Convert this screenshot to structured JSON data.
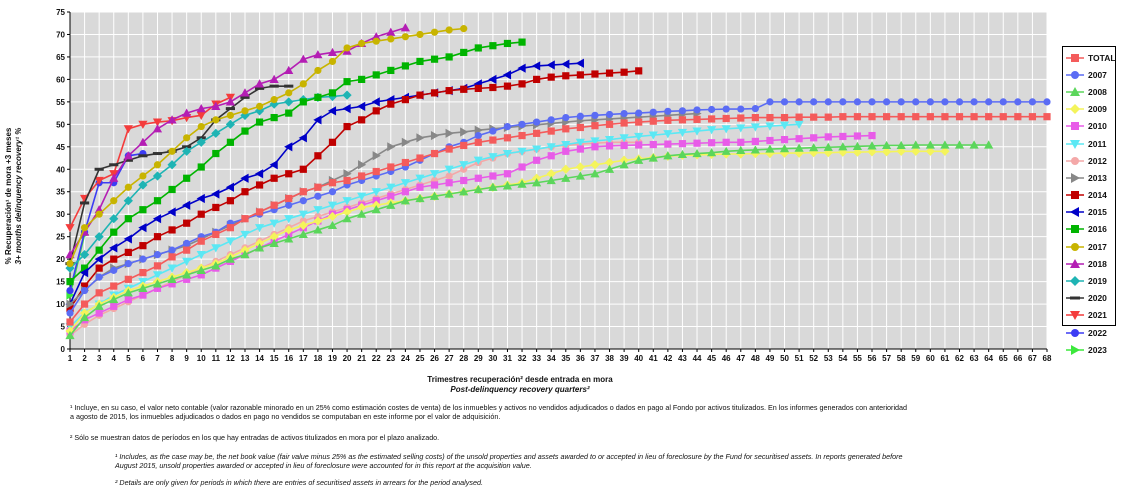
{
  "chart_data": {
    "type": "line",
    "title": "",
    "ylabel": "% Recuperación¹ de mora +3 meses",
    "ylabel_en": "3+ months delinquency recovery¹ %",
    "xlabel": "Trimestres recuperación² desde entrada en mora",
    "xlabel_en": "Post-delinquency recovery quarters²",
    "xlim": [
      1,
      68
    ],
    "ylim": [
      0,
      75
    ],
    "y_ticks": [
      0,
      5,
      10,
      15,
      20,
      25,
      30,
      35,
      40,
      45,
      50,
      55,
      60,
      65,
      70,
      75
    ],
    "x_ticks": [
      1,
      2,
      3,
      4,
      5,
      6,
      7,
      8,
      9,
      10,
      11,
      12,
      13,
      14,
      15,
      16,
      17,
      18,
      19,
      20,
      21,
      22,
      23,
      24,
      25,
      26,
      27,
      28,
      29,
      30,
      31,
      32,
      33,
      34,
      35,
      36,
      37,
      38,
      39,
      40,
      41,
      42,
      43,
      44,
      45,
      46,
      47,
      48,
      49,
      50,
      51,
      52,
      53,
      54,
      55,
      56,
      57,
      58,
      59,
      60,
      61,
      62,
      63,
      64,
      65,
      66,
      67,
      68
    ],
    "grid": true,
    "legend_position": "right",
    "series": [
      {
        "name": "TOTAL",
        "color": "#f45b5b",
        "marker": "square",
        "start_x": 1,
        "values": [
          6,
          10,
          12.5,
          14,
          15.5,
          17,
          18.5,
          20.5,
          22,
          24,
          25.5,
          27,
          29,
          30.5,
          32,
          33.5,
          35,
          36,
          37,
          37.5,
          38.5,
          39.5,
          40.5,
          41.5,
          42.5,
          43.5,
          44.5,
          45.3,
          46,
          46.5,
          47,
          47.5,
          48,
          48.5,
          49,
          49.3,
          49.7,
          50,
          50.3,
          50.5,
          50.7,
          50.9,
          51,
          51.1,
          51.2,
          51.3,
          51.4,
          51.5,
          51.5,
          51.5,
          51.6,
          51.6,
          51.6,
          51.7,
          51.7,
          51.7,
          51.7,
          51.7,
          51.7,
          51.7,
          51.7,
          51.7,
          51.7,
          51.7,
          51.7,
          51.7,
          51.7,
          51.7
        ]
      },
      {
        "name": "2007",
        "color": "#5b6cf4",
        "marker": "circle",
        "start_x": 1,
        "values": [
          8,
          13,
          16,
          17.5,
          19,
          20,
          21,
          22,
          23.5,
          25,
          26,
          28,
          29,
          30,
          31,
          32,
          33,
          34,
          35,
          36.5,
          37.5,
          38.5,
          39.5,
          40.5,
          42,
          43.5,
          45,
          46,
          47.5,
          48.5,
          49.5,
          50,
          50.5,
          51,
          51.5,
          51.8,
          52,
          52.2,
          52.4,
          52.5,
          52.7,
          52.9,
          53,
          53.2,
          53.3,
          53.4,
          53.4,
          53.5,
          55,
          55,
          55,
          55,
          55,
          55,
          55,
          55,
          55,
          55,
          55,
          55,
          55,
          55,
          55,
          55,
          55,
          55,
          55,
          55
        ]
      },
      {
        "name": "2008",
        "color": "#5bd65b",
        "marker": "triangle",
        "start_x": 1,
        "values": [
          3,
          7,
          9.5,
          11,
          12.5,
          13.5,
          14.5,
          15.5,
          16.5,
          17.5,
          18.5,
          20,
          21,
          22.5,
          23.5,
          24.5,
          25.5,
          26.5,
          27.5,
          29,
          30,
          31,
          32,
          33,
          33.5,
          34,
          34.5,
          35,
          35.5,
          36,
          36.3,
          36.7,
          37,
          37.5,
          38,
          38.5,
          39,
          40,
          41,
          42,
          42.5,
          43,
          43.3,
          43.5,
          43.7,
          44,
          44.2,
          44.3,
          44.5,
          44.6,
          44.7,
          44.8,
          44.9,
          45,
          45.1,
          45.2,
          45.3,
          45.3,
          45.4,
          45.4,
          45.4,
          45.4,
          45.4,
          45.4
        ]
      },
      {
        "name": "2009",
        "color": "#f4f45b",
        "marker": "diamond",
        "start_x": 1,
        "values": [
          4,
          8,
          10,
          11.5,
          13,
          14,
          15,
          16,
          17,
          18,
          19,
          20.5,
          22,
          23.5,
          25,
          26.5,
          27.5,
          28.5,
          29.5,
          30.5,
          31.5,
          32,
          32.5,
          33,
          33.5,
          34,
          34.5,
          35,
          35.5,
          36,
          36.5,
          37,
          38,
          39,
          40,
          40.5,
          41,
          41.5,
          42,
          42.3,
          42.6,
          42.9,
          43.1,
          43.2,
          43.3,
          43.4,
          43.4,
          43.5,
          43.5,
          43.6,
          43.6,
          43.7,
          43.7,
          43.8,
          43.8,
          43.9,
          43.9,
          44,
          44,
          44,
          44
        ]
      },
      {
        "name": "2010",
        "color": "#e85ce8",
        "marker": "square",
        "start_x": 1,
        "values": [
          4,
          6.5,
          8,
          9.5,
          11,
          12,
          13.5,
          14.5,
          15.5,
          16.5,
          18,
          19.5,
          21,
          22.5,
          24,
          25.5,
          27,
          28.5,
          30,
          31,
          32,
          33,
          34,
          35,
          36,
          36.5,
          37,
          37.5,
          38,
          38.5,
          39,
          40.5,
          42,
          43,
          44,
          44.5,
          45,
          45.2,
          45.3,
          45.4,
          45.5,
          45.6,
          45.7,
          45.8,
          45.9,
          46,
          46,
          46.2,
          46.4,
          46.6,
          46.8,
          47,
          47.2,
          47.3,
          47.4,
          47.5
        ]
      },
      {
        "name": "2011",
        "color": "#5be8f4",
        "marker": "triangle-down",
        "start_x": 1,
        "values": [
          5,
          8,
          10,
          12,
          13.5,
          15,
          16.5,
          18,
          19.5,
          21,
          22.5,
          24,
          25.5,
          27,
          28,
          29,
          30,
          31,
          32,
          33,
          34,
          35,
          36,
          37,
          38,
          39,
          40,
          41,
          42,
          42.8,
          43.5,
          44,
          44.5,
          45,
          45.5,
          46,
          46.3,
          46.6,
          47,
          47.3,
          47.6,
          47.9,
          48.2,
          48.5,
          48.8,
          49,
          49.2,
          49.4,
          49.6,
          49.8,
          50
        ]
      },
      {
        "name": "2012",
        "color": "#f4a8a8",
        "marker": "circle",
        "start_x": 1,
        "values": [
          3,
          5.5,
          7.5,
          9,
          10.5,
          12,
          13.5,
          15,
          16.5,
          18,
          19.5,
          21,
          22.5,
          24,
          25.5,
          27,
          28.5,
          29.5,
          30.5,
          31.5,
          32.5,
          33.5,
          34.5,
          35.5,
          36.5,
          37.5,
          38.5,
          40,
          41.5,
          42.5,
          43.5,
          44,
          44.5,
          45,
          45.3,
          45.6,
          45.8,
          46,
          46,
          46
        ]
      },
      {
        "name": "2013",
        "color": "#888888",
        "marker": "triangle-right",
        "start_x": 1,
        "values": [
          10,
          13,
          16,
          18,
          19,
          20,
          21,
          22,
          23,
          24.5,
          26,
          27.5,
          29,
          30.5,
          32,
          33.5,
          35,
          36,
          37.5,
          39,
          41,
          43,
          45,
          46,
          47,
          47.5,
          48,
          48.3,
          48.7,
          49,
          49.3,
          49.6,
          49.9,
          50.2,
          50.5,
          50.8,
          51,
          51.2,
          51.4,
          51.6,
          51.8,
          52,
          52.2,
          52.4
        ]
      },
      {
        "name": "2014",
        "color": "#c00000",
        "marker": "square",
        "start_x": 1,
        "values": [
          9,
          14,
          18,
          20,
          21.5,
          23,
          25,
          26.5,
          28,
          30,
          31.5,
          33,
          35,
          36.5,
          38,
          39,
          40,
          43,
          46,
          49.5,
          51,
          53,
          54.5,
          55.5,
          56.5,
          57,
          57.5,
          57.8,
          58,
          58.2,
          58.5,
          59,
          60,
          60.5,
          60.8,
          61,
          61.2,
          61.4,
          61.6,
          61.9
        ]
      },
      {
        "name": "2015",
        "color": "#0000c8",
        "marker": "triangle-left",
        "start_x": 1,
        "values": [
          10,
          17,
          20,
          22.5,
          24.5,
          27,
          29,
          30.5,
          32,
          33.5,
          34.5,
          36,
          38,
          39,
          41,
          45,
          47,
          51,
          53,
          53.5,
          54,
          55,
          55.5,
          56,
          56.5,
          57,
          57.5,
          58,
          59,
          60,
          61,
          62.5,
          63,
          63.2,
          63.4,
          63.6
        ]
      },
      {
        "name": "2016",
        "color": "#00b400",
        "marker": "square",
        "start_x": 1,
        "values": [
          15,
          18,
          22,
          26,
          29,
          31,
          33,
          35.5,
          38,
          40.5,
          43.5,
          46,
          48.5,
          50.5,
          51.5,
          52.5,
          55,
          56,
          57,
          59.5,
          60,
          61,
          62,
          63,
          64,
          64.5,
          65,
          66,
          67,
          67.5,
          68,
          68.3
        ]
      },
      {
        "name": "2017",
        "color": "#c8b400",
        "marker": "circle",
        "start_x": 1,
        "values": [
          19,
          27,
          30,
          33,
          36,
          38.5,
          41,
          44,
          47,
          49.5,
          51,
          52,
          53,
          54,
          55.5,
          57,
          59,
          62,
          64,
          67,
          68,
          68.5,
          69,
          69.5,
          70,
          70.5,
          71,
          71.3
        ]
      },
      {
        "name": "2018",
        "color": "#b41eb4",
        "marker": "triangle",
        "start_x": 1,
        "values": [
          21,
          26,
          31,
          38,
          43,
          46,
          49,
          51,
          52.5,
          53.5,
          54,
          55,
          57,
          59,
          60,
          62,
          64.5,
          65.5,
          66,
          66.3,
          68,
          69.5,
          70.5,
          71.5
        ]
      },
      {
        "name": "2019",
        "color": "#1eb4b4",
        "marker": "diamond",
        "start_x": 1,
        "values": [
          18,
          21,
          25,
          29,
          33,
          36.5,
          38.5,
          41,
          44,
          46,
          48,
          50,
          52,
          53,
          54.5,
          55,
          55.5,
          56,
          56.2,
          56.5
        ]
      },
      {
        "name": "2020",
        "color": "#333333",
        "marker": "minus",
        "start_x": 1,
        "values": [
          19,
          32.5,
          40,
          41,
          42,
          43,
          43.5,
          44,
          45,
          47,
          51,
          53.5,
          56,
          58,
          58.5,
          58.5
        ]
      },
      {
        "name": "2021",
        "color": "#f43c3c",
        "marker": "triangle-down",
        "start_x": 1,
        "values": [
          27,
          33.5,
          37.5,
          39,
          49,
          50,
          50.5,
          50.8,
          51.5,
          52,
          54.5,
          56
        ]
      },
      {
        "name": "2022",
        "color": "#3c3cf4",
        "marker": "circle",
        "start_x": 1,
        "values": [
          13,
          26,
          37,
          37,
          43,
          43.5
        ]
      },
      {
        "name": "2023",
        "color": "#3ce83c",
        "marker": "triangle-right",
        "start_x": 1,
        "values": [
          12,
          25.5
        ]
      }
    ]
  },
  "footnotes": {
    "es_1": "¹ Incluye, en su caso, el valor neto contable (valor razonable minorado en un 25% como estimación costes de venta) de los inmuebles y activos no vendidos adjudicados o dados en pago al Fondo por activos titulizados. En los informes generados con anterioridad\na agosto de 2015, los inmuebles adjudicados o dados en pago no vendidos se computaban en este informe por el valor de adquisición.",
    "es_2": "² Sólo se muestran datos de períodos en los que hay entradas de activos titulizados en mora por el plazo analizado.",
    "en_1": "¹ Includes, as the case may be, the net book value (fair value minus 25% as the estimated selling costs) of the unsold properties and assets awarded to or accepted in lieu of foreclosure by the Fund for securitised assets. In reports generated before\nAugust 2015, unsold properties awarded or accepted in lieu of foreclosure were accounted for in this report at the acquisition value.",
    "en_2": "² Details are only given for periods in which there are entries of securitised assets in arrears for the period analysed."
  }
}
